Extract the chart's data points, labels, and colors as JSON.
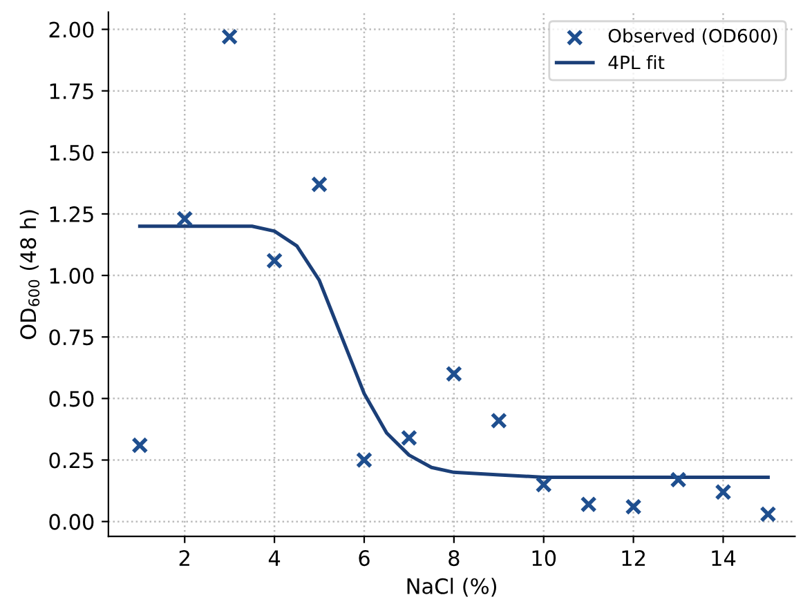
{
  "chart_data": {
    "type": "scatter",
    "xlabel": "NaCl (%)",
    "ylabel": "OD$_{600}$ (48 h)",
    "series": [
      {
        "name": "Observed (OD600)",
        "marker": "cross",
        "color": "#1f4f8f",
        "x": [
          1,
          2,
          3,
          4,
          5,
          6,
          7,
          8,
          9,
          10,
          11,
          12,
          13,
          14,
          15
        ],
        "values": [
          0.31,
          1.23,
          1.97,
          1.06,
          1.37,
          0.25,
          0.34,
          0.6,
          0.41,
          0.15,
          0.07,
          0.06,
          0.17,
          0.12,
          0.03
        ]
      },
      {
        "name": "4PL fit",
        "type": "line",
        "marker": "none",
        "line_style": "solid",
        "color": "#1b3f78",
        "x": [
          1,
          2,
          3,
          3.5,
          4,
          4.5,
          5,
          5.5,
          6,
          6.5,
          7,
          7.5,
          8,
          9,
          10,
          12,
          15
        ],
        "values": [
          1.2,
          1.2,
          1.2,
          1.2,
          1.18,
          1.12,
          0.98,
          0.75,
          0.52,
          0.36,
          0.27,
          0.22,
          0.2,
          0.19,
          0.18,
          0.18,
          0.18
        ]
      }
    ],
    "xlim": [
      0.3,
      15.6
    ],
    "ylim": [
      -0.06,
      2.07
    ],
    "xticks": [
      2,
      4,
      6,
      8,
      10,
      12,
      14
    ],
    "yticks": [
      {
        "value": 0,
        "label": "0.00"
      },
      {
        "value": 0.25,
        "label": "0.25"
      },
      {
        "value": 0.5,
        "label": "0.50"
      },
      {
        "value": 0.75,
        "label": "0.75"
      },
      {
        "value": 1,
        "label": "1.00"
      },
      {
        "value": 1.25,
        "label": "1.25"
      },
      {
        "value": 1.5,
        "label": "1.50"
      },
      {
        "value": 1.75,
        "label": "1.75"
      },
      {
        "value": 2,
        "label": "2.00"
      }
    ],
    "grid": true,
    "legend": "top right"
  }
}
